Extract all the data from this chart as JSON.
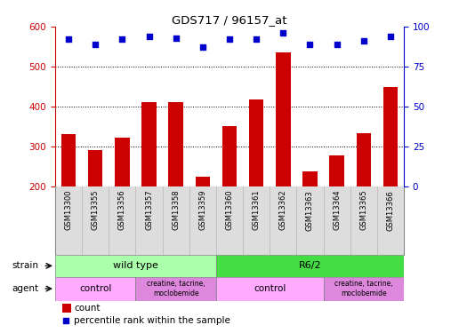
{
  "title": "GDS717 / 96157_at",
  "samples": [
    "GSM13300",
    "GSM13355",
    "GSM13356",
    "GSM13357",
    "GSM13358",
    "GSM13359",
    "GSM13360",
    "GSM13361",
    "GSM13362",
    "GSM13363",
    "GSM13364",
    "GSM13365",
    "GSM13366"
  ],
  "counts": [
    330,
    290,
    322,
    410,
    410,
    225,
    350,
    418,
    535,
    237,
    277,
    333,
    448
  ],
  "percentiles": [
    92,
    89,
    92,
    94,
    93,
    87,
    92,
    92,
    96,
    89,
    89,
    91,
    94
  ],
  "ylim_left": [
    200,
    600
  ],
  "ylim_right": [
    0,
    100
  ],
  "yticks_left": [
    200,
    300,
    400,
    500,
    600
  ],
  "yticks_right": [
    0,
    25,
    50,
    75,
    100
  ],
  "bar_color": "#cc0000",
  "scatter_color": "#0000cc",
  "grid_color": "#000000",
  "strain_wt_label": "wild type",
  "strain_r62_label": "R6/2",
  "agent_ctrl_label": "control",
  "agent_drug_label": "creatine, tacrine,\nmoclobemide",
  "strain_wt_color": "#aaffaa",
  "strain_r62_color": "#44dd44",
  "agent_ctrl_color": "#ffaaff",
  "agent_drug_color": "#dd88dd",
  "xtick_bg_color": "#dddddd",
  "legend_count_label": "count",
  "legend_pct_label": "percentile rank within the sample",
  "left_ylabel_color": "#cc0000",
  "right_ylabel_color": "#0000cc"
}
